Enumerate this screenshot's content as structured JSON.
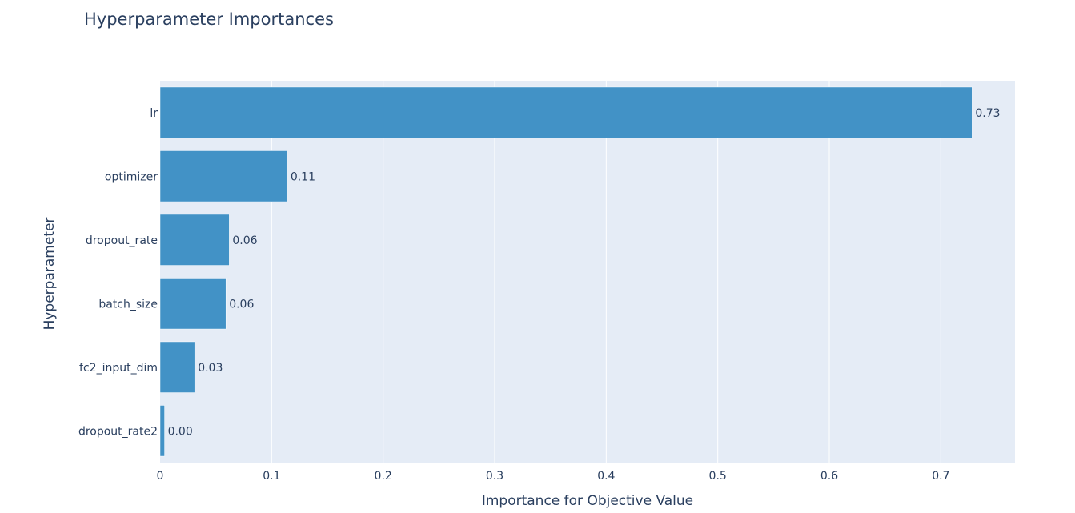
{
  "chart_data": {
    "type": "bar",
    "orientation": "horizontal",
    "title": "Hyperparameter Importances",
    "xlabel": "Importance for Objective Value",
    "ylabel": "Hyperparameter",
    "categories": [
      "lr",
      "optimizer",
      "dropout_rate",
      "batch_size",
      "fc2_input_dim",
      "dropout_rate2"
    ],
    "values": [
      0.728,
      0.114,
      0.062,
      0.059,
      0.031,
      0.004
    ],
    "data_labels": [
      "0.73",
      "0.11",
      "0.06",
      "0.06",
      "0.03",
      "0.00"
    ],
    "xticks": [
      0,
      0.1,
      0.2,
      0.3,
      0.4,
      0.5,
      0.6,
      0.7
    ],
    "xtick_labels": [
      "0",
      "0.1",
      "0.2",
      "0.3",
      "0.4",
      "0.5",
      "0.6",
      "0.7"
    ],
    "xlim": [
      0,
      0.7665
    ],
    "grid": true,
    "legend": "none",
    "colors": {
      "bar": "#4292c6",
      "plot_background": "#e5ecf6",
      "grid": "#ffffff",
      "text": "#2a3f5f"
    }
  }
}
